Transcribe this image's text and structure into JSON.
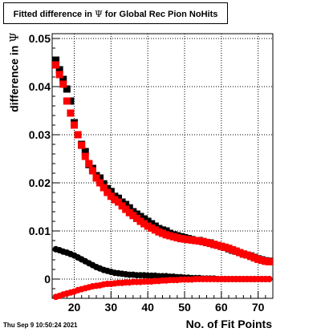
{
  "window": {
    "timestamp": "Thu Sep  9 10:50:24 2021"
  },
  "chart_data": {
    "type": "scatter",
    "title_prefix": "Fitted difference in",
    "title_symbol": "Ψ",
    "title_suffix": "for Global Rec Pion NoHits",
    "xlabel": "No. of Fit Points",
    "ylabel_text": "difference in",
    "ylabel_symbol": "Ψ",
    "xlim": [
      14,
      74
    ],
    "ylim": [
      -0.004,
      0.051
    ],
    "xticks": [
      20,
      30,
      40,
      50,
      60,
      70
    ],
    "yticks": [
      0,
      0.01,
      0.02,
      0.03,
      0.04,
      0.05
    ],
    "ytick_labels": [
      "0",
      "0.01",
      "0.02",
      "0.03",
      "0.04",
      "0.05"
    ],
    "grid": true,
    "series": [
      {
        "color": "#000000",
        "marker": "square",
        "x": [
          15,
          16,
          17,
          18,
          19,
          20,
          21,
          22,
          23,
          24,
          25,
          26,
          27,
          28,
          29,
          30,
          31,
          32,
          33,
          34,
          35,
          36,
          37,
          38,
          39,
          40,
          41,
          42,
          43,
          44,
          45,
          46,
          47,
          48,
          49,
          50,
          51,
          52,
          53,
          54,
          55,
          56,
          57,
          58,
          59,
          60,
          61,
          62,
          63,
          64,
          65,
          66,
          67,
          68,
          69,
          70,
          71,
          72,
          73
        ],
        "y": [
          0.0455,
          0.0435,
          0.0415,
          0.0395,
          0.037,
          0.0325,
          0.03,
          0.028,
          0.0265,
          0.0238,
          0.023,
          0.0215,
          0.021,
          0.0198,
          0.0188,
          0.0182,
          0.0172,
          0.0168,
          0.016,
          0.0155,
          0.0148,
          0.014,
          0.0135,
          0.013,
          0.0125,
          0.012,
          0.0115,
          0.011,
          0.0105,
          0.0102,
          0.01,
          0.0095,
          0.0092,
          0.009,
          0.0088,
          0.0086,
          0.0084,
          0.0082,
          0.008,
          0.008,
          0.0078,
          0.0076,
          0.0075,
          0.0072,
          0.007,
          0.0068,
          0.0066,
          0.0063,
          0.006,
          0.0058,
          0.0055,
          0.0052,
          0.005,
          0.0048,
          0.0045,
          0.0042,
          0.004,
          0.0038,
          0.0037
        ]
      },
      {
        "color": "#ff0000",
        "marker": "square",
        "x": [
          15,
          16,
          17,
          18,
          19,
          20,
          21,
          22,
          23,
          24,
          25,
          26,
          27,
          28,
          29,
          30,
          31,
          32,
          33,
          34,
          35,
          36,
          37,
          38,
          39,
          40,
          41,
          42,
          43,
          44,
          45,
          46,
          47,
          48,
          49,
          50,
          51,
          52,
          53,
          54,
          55,
          56,
          57,
          58,
          59,
          60,
          61,
          62,
          63,
          64,
          65,
          66,
          67,
          68,
          69,
          70,
          71,
          72,
          73
        ],
        "y": [
          0.0445,
          0.0425,
          0.0405,
          0.037,
          0.0345,
          0.032,
          0.03,
          0.0278,
          0.0255,
          0.024,
          0.0225,
          0.021,
          0.02,
          0.019,
          0.018,
          0.0172,
          0.0165,
          0.016,
          0.0152,
          0.0145,
          0.0138,
          0.0132,
          0.0126,
          0.012,
          0.0115,
          0.011,
          0.0106,
          0.0102,
          0.0098,
          0.0095,
          0.0092,
          0.009,
          0.0088,
          0.0086,
          0.0084,
          0.0083,
          0.0082,
          0.0081,
          0.008,
          0.0079,
          0.0078,
          0.0076,
          0.0074,
          0.0072,
          0.007,
          0.0068,
          0.0066,
          0.0064,
          0.0061,
          0.0058,
          0.0055,
          0.0052,
          0.005,
          0.0047,
          0.0044,
          0.0041,
          0.0039,
          0.0037,
          0.0036
        ]
      },
      {
        "color": "#000000",
        "marker": "circle",
        "x": [
          15,
          16,
          17,
          18,
          19,
          20,
          21,
          22,
          23,
          24,
          25,
          26,
          27,
          28,
          29,
          30,
          31,
          32,
          33,
          34,
          35,
          36,
          37,
          38,
          39,
          40,
          41,
          42,
          43,
          44,
          45,
          46,
          47,
          48,
          49,
          50,
          51,
          52,
          53,
          54,
          55,
          56,
          57,
          58,
          59,
          60,
          61,
          62,
          63,
          64,
          65,
          66,
          67,
          68,
          69,
          70,
          71,
          72,
          73
        ],
        "y": [
          0.0062,
          0.006,
          0.0057,
          0.0055,
          0.0052,
          0.0049,
          0.0045,
          0.0041,
          0.0037,
          0.0033,
          0.0029,
          0.0025,
          0.0022,
          0.0019,
          0.0017,
          0.0015,
          0.0013,
          0.0012,
          0.0011,
          0.001,
          0.0009,
          0.0009,
          0.0008,
          0.0008,
          0.0008,
          0.0007,
          0.0007,
          0.0007,
          0.0006,
          0.0006,
          0.0006,
          0.0005,
          0.0005,
          0.0004,
          0.0004,
          0.0003,
          0.0003,
          0.0002,
          0.0002,
          0.0002,
          0.0001,
          0.0001,
          0.0001,
          0.0001,
          0.0,
          0.0,
          0.0,
          0.0,
          0.0,
          0.0,
          0.0,
          0.0,
          0.0,
          0.0,
          0.0,
          0.0,
          0.0,
          0.0,
          0.0
        ]
      },
      {
        "color": "#ff0000",
        "marker": "circle",
        "x": [
          15,
          16,
          17,
          18,
          19,
          20,
          21,
          22,
          23,
          24,
          25,
          26,
          27,
          28,
          29,
          30,
          31,
          32,
          33,
          34,
          35,
          36,
          37,
          38,
          39,
          40,
          41,
          42,
          43,
          44,
          45,
          46,
          47,
          48,
          49,
          50,
          51,
          52,
          53,
          54,
          55,
          56,
          57,
          58,
          59,
          60,
          61,
          62,
          63,
          64,
          65,
          66,
          67,
          68,
          69,
          70,
          71,
          72,
          73
        ],
        "y": [
          -0.0037,
          -0.0035,
          -0.0032,
          -0.003,
          -0.0028,
          -0.0026,
          -0.0023,
          -0.0021,
          -0.0019,
          -0.0017,
          -0.0015,
          -0.0014,
          -0.0013,
          -0.0011,
          -0.001,
          -0.001,
          -0.0009,
          -0.0008,
          -0.0008,
          -0.0007,
          -0.0007,
          -0.0006,
          -0.0006,
          -0.0006,
          -0.0005,
          -0.0005,
          -0.0005,
          -0.0004,
          -0.0004,
          -0.0003,
          -0.0003,
          -0.0002,
          -0.0002,
          -0.0002,
          -0.0001,
          -0.0001,
          -0.0001,
          -0.0001,
          0.0,
          0.0,
          0.0,
          0.0,
          0.0,
          0.0,
          0.0,
          0.0,
          0.0,
          0.0,
          0.0,
          0.0,
          0.0,
          0.0,
          0.0,
          0.0,
          0.0,
          0.0,
          0.0,
          0.0,
          0.0
        ]
      }
    ]
  }
}
